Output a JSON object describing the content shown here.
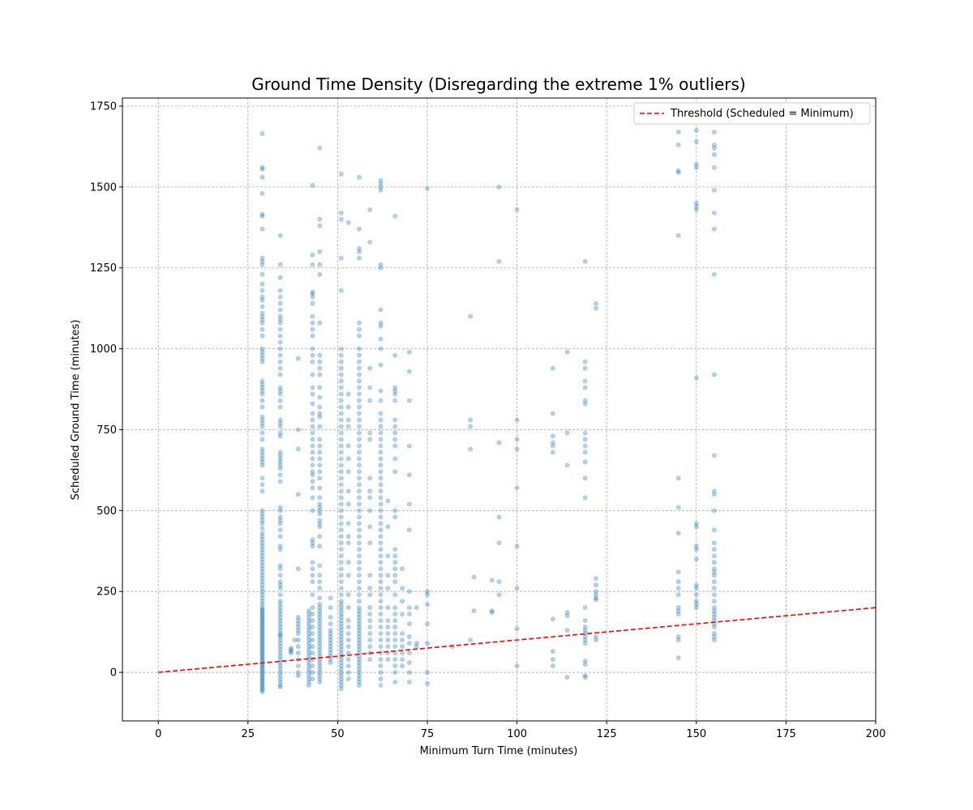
{
  "chart_data": {
    "type": "scatter",
    "title": "Ground Time Density (Disregarding the extreme 1% outliers)",
    "xlabel": "Minimum Turn Time (minutes)",
    "ylabel": "Scheduled Ground Time (minutes)",
    "xlim": [
      -10,
      200
    ],
    "ylim": [
      -150,
      1775
    ],
    "x_ticks": [
      0,
      25,
      50,
      75,
      100,
      125,
      150,
      175,
      200
    ],
    "y_ticks": [
      0,
      250,
      500,
      750,
      1000,
      1250,
      1500,
      1750
    ],
    "grid": true,
    "legend_position": "top-right",
    "point_color": "#1f77b4",
    "point_opacity": 0.35,
    "threshold": {
      "name": "Threshold (Scheduled = Minimum)",
      "color": "#ff0000",
      "style": "dashed",
      "points": [
        [
          0,
          0
        ],
        [
          200,
          200
        ]
      ]
    },
    "columns": [
      {
        "x": 29,
        "y": [
          -60,
          -55,
          -50,
          -45,
          -40,
          -35,
          -30,
          -25,
          -20,
          -15,
          -10,
          -5,
          0,
          5,
          10,
          15,
          20,
          25,
          30,
          35,
          40,
          45,
          50,
          55,
          60,
          65,
          70,
          75,
          80,
          85,
          90,
          95,
          100,
          105,
          110,
          115,
          120,
          125,
          130,
          135,
          140,
          145,
          150,
          155,
          160,
          165,
          170,
          175,
          180,
          185,
          190,
          195,
          200,
          210,
          220,
          230,
          240,
          250,
          260,
          270,
          280,
          290,
          300,
          310,
          320,
          330,
          340,
          350,
          360,
          370,
          380,
          390,
          400,
          410,
          420,
          430,
          445,
          460,
          470,
          480,
          490,
          500,
          560,
          580,
          600,
          640,
          650,
          660,
          670,
          680,
          690,
          720,
          740,
          760,
          770,
          780,
          790,
          820,
          840,
          860,
          870,
          880,
          890,
          900,
          960,
          970,
          980,
          990,
          1000,
          1040,
          1060,
          1080,
          1090,
          1100,
          1110,
          1130,
          1150,
          1160,
          1180,
          1200,
          1230,
          1260,
          1270,
          1280,
          1370,
          1410,
          1415,
          1480,
          1530,
          1555,
          1560,
          1665
        ]
      },
      {
        "x": 34,
        "y": [
          -45,
          -40,
          -30,
          -20,
          -10,
          0,
          10,
          20,
          30,
          40,
          50,
          60,
          70,
          80,
          90,
          100,
          110,
          115,
          120,
          130,
          140,
          150,
          160,
          170,
          180,
          190,
          200,
          210,
          220,
          240,
          260,
          270,
          280,
          300,
          320,
          330,
          380,
          390,
          420,
          440,
          460,
          470,
          480,
          500,
          510,
          590,
          610,
          630,
          640,
          650,
          660,
          670,
          680,
          730,
          740,
          760,
          770,
          780,
          820,
          840,
          860,
          870,
          880,
          920,
          940,
          960,
          980,
          1000,
          1020,
          1040,
          1060,
          1080,
          1090,
          1100,
          1120,
          1140,
          1160,
          1180,
          1220,
          1260,
          1350
        ]
      },
      {
        "x": 37,
        "y": [
          60,
          65,
          70,
          75
        ]
      },
      {
        "x": 38,
        "y": [
          100
        ]
      },
      {
        "x": 39,
        "y": [
          -10,
          0,
          20,
          40,
          60,
          80,
          100,
          120,
          130,
          140,
          150,
          160,
          170,
          320,
          550,
          690,
          750,
          970
        ]
      },
      {
        "x": 42,
        "y": [
          -40,
          -30,
          -20,
          -10,
          0,
          10,
          20,
          30,
          40,
          50,
          60,
          70,
          80,
          90,
          100,
          110,
          120,
          130,
          140,
          150,
          160,
          170,
          180,
          190
        ]
      },
      {
        "x": 43,
        "y": [
          -20,
          0,
          20,
          40,
          60,
          80,
          100,
          120,
          140,
          160,
          180,
          200,
          240,
          280,
          300,
          320,
          340,
          390,
          400,
          410,
          500,
          540,
          570,
          590,
          610,
          620,
          640,
          660,
          680,
          700,
          720,
          740,
          760,
          780,
          800,
          830,
          860,
          880,
          920,
          960,
          980,
          1000,
          1040,
          1060,
          1080,
          1100,
          1140,
          1160,
          1170,
          1175,
          1260,
          1290,
          1505
        ]
      },
      {
        "x": 45,
        "y": [
          -30,
          -20,
          -10,
          0,
          10,
          20,
          30,
          40,
          50,
          60,
          70,
          80,
          90,
          100,
          110,
          120,
          130,
          140,
          150,
          160,
          170,
          180,
          190,
          200,
          210,
          230,
          260,
          280,
          300,
          330,
          390,
          420,
          450,
          460,
          470,
          490,
          500,
          510,
          520,
          540,
          570,
          600,
          620,
          640,
          660,
          680,
          700,
          720,
          760,
          790,
          800,
          820,
          850,
          880,
          920,
          940,
          960,
          980,
          1080,
          1230,
          1260,
          1300,
          1380,
          1400,
          1620
        ]
      },
      {
        "x": 48,
        "y": [
          30,
          40,
          50,
          60,
          70,
          80,
          90,
          100,
          110,
          120,
          130,
          150,
          170,
          200,
          230
        ]
      },
      {
        "x": 51,
        "y": [
          -50,
          -40,
          -30,
          -20,
          -10,
          0,
          10,
          20,
          30,
          40,
          50,
          60,
          70,
          80,
          90,
          100,
          110,
          120,
          130,
          140,
          150,
          160,
          170,
          180,
          190,
          200,
          210,
          220,
          240,
          260,
          280,
          300,
          320,
          340,
          360,
          380,
          400,
          420,
          440,
          460,
          480,
          500,
          520,
          540,
          560,
          580,
          600,
          620,
          640,
          660,
          680,
          700,
          720,
          740,
          760,
          780,
          800,
          820,
          840,
          860,
          880,
          900,
          920,
          940,
          960,
          980,
          1000,
          1180,
          1280,
          1400,
          1420,
          1540
        ]
      },
      {
        "x": 53,
        "y": [
          -20,
          0,
          20,
          40,
          60,
          80,
          100,
          120,
          140,
          160,
          200,
          240,
          300,
          340,
          400,
          420,
          460,
          520,
          560,
          620,
          660,
          700,
          760,
          780,
          820,
          860,
          1390
        ]
      },
      {
        "x": 56,
        "y": [
          -40,
          -30,
          -20,
          -10,
          0,
          10,
          20,
          30,
          40,
          50,
          60,
          70,
          80,
          90,
          100,
          110,
          120,
          130,
          140,
          150,
          160,
          170,
          180,
          190,
          200,
          220,
          240,
          260,
          280,
          300,
          320,
          340,
          360,
          380,
          400,
          420,
          440,
          460,
          480,
          500,
          520,
          540,
          560,
          580,
          600,
          620,
          640,
          660,
          680,
          700,
          720,
          740,
          760,
          780,
          800,
          820,
          840,
          860,
          880,
          900,
          920,
          940,
          960,
          980,
          1000,
          1040,
          1060,
          1080,
          1280,
          1300,
          1310,
          1370,
          1530
        ]
      },
      {
        "x": 59,
        "y": [
          40,
          60,
          80,
          100,
          120,
          140,
          160,
          180,
          200,
          240,
          260,
          300,
          400,
          450,
          500,
          540,
          560,
          600,
          720,
          740,
          840,
          880,
          940,
          1330,
          1430
        ]
      },
      {
        "x": 62,
        "y": [
          -40,
          -20,
          0,
          20,
          40,
          60,
          80,
          100,
          120,
          140,
          160,
          180,
          200,
          220,
          240,
          260,
          280,
          300,
          320,
          340,
          360,
          380,
          400,
          420,
          440,
          460,
          480,
          500,
          520,
          540,
          560,
          580,
          600,
          620,
          640,
          660,
          680,
          700,
          720,
          740,
          760,
          780,
          800,
          840,
          870,
          950,
          1000,
          1030,
          1070,
          1080,
          1120,
          1250,
          1260,
          1490,
          1500,
          1510,
          1520
        ]
      },
      {
        "x": 64,
        "y": [
          40,
          60,
          80,
          100,
          120,
          140,
          160,
          200,
          260,
          300,
          360,
          450,
          530
        ]
      },
      {
        "x": 66,
        "y": [
          -30,
          0,
          20,
          40,
          60,
          80,
          100,
          120,
          140,
          160,
          180,
          200,
          240,
          280,
          300,
          320,
          340,
          360,
          380,
          480,
          500,
          620,
          660,
          700,
          720,
          740,
          760,
          780,
          840,
          860,
          870,
          880,
          980,
          1410
        ]
      },
      {
        "x": 68,
        "y": [
          20,
          40,
          60,
          80,
          100,
          120,
          180,
          220,
          260,
          320
        ]
      },
      {
        "x": 70,
        "y": [
          -30,
          0,
          30,
          60,
          90,
          110,
          150,
          180,
          200,
          250,
          440,
          520,
          610,
          700,
          840,
          930,
          990
        ]
      },
      {
        "x": 72,
        "y": [
          80,
          90,
          200
        ]
      },
      {
        "x": 75,
        "y": [
          -35,
          0,
          90,
          150,
          210,
          240,
          250,
          1495
        ]
      },
      {
        "x": 82,
        "y": [
          80
        ]
      },
      {
        "x": 87,
        "y": [
          100,
          690,
          760,
          780,
          1100
        ]
      },
      {
        "x": 88,
        "y": [
          190,
          295
        ]
      },
      {
        "x": 93,
        "y": [
          185,
          190,
          285
        ]
      },
      {
        "x": 95,
        "y": [
          240,
          280,
          400,
          480,
          710,
          1270,
          1500
        ]
      },
      {
        "x": 100,
        "y": [
          20,
          135,
          260,
          390,
          570,
          690,
          720,
          780,
          1430
        ]
      },
      {
        "x": 110,
        "y": [
          20,
          40,
          65,
          165,
          680,
          700,
          710,
          730,
          800,
          940
        ]
      },
      {
        "x": 114,
        "y": [
          -15,
          130,
          175,
          185,
          640,
          740,
          990
        ]
      },
      {
        "x": 119,
        "y": [
          -15,
          -10,
          25,
          35,
          90,
          100,
          110,
          120,
          130,
          140,
          160,
          200,
          540,
          600,
          650,
          680,
          700,
          720,
          740,
          830,
          840,
          880,
          900,
          940,
          960,
          1270
        ]
      },
      {
        "x": 122,
        "y": [
          100,
          110,
          225,
          230,
          240,
          250,
          270,
          290,
          1125,
          1140
        ]
      },
      {
        "x": 145,
        "y": [
          45,
          100,
          110,
          180,
          190,
          200,
          240,
          260,
          280,
          310,
          430,
          510,
          600,
          1350,
          1545,
          1550,
          1630,
          1670
        ]
      },
      {
        "x": 150,
        "y": [
          200,
          210,
          220,
          240,
          260,
          270,
          350,
          380,
          390,
          450,
          460,
          910,
          1430,
          1440,
          1450,
          1560,
          1570,
          1640,
          1675
        ]
      },
      {
        "x": 155,
        "y": [
          100,
          110,
          120,
          140,
          150,
          160,
          170,
          180,
          190,
          200,
          220,
          240,
          260,
          280,
          300,
          310,
          320,
          340,
          360,
          380,
          400,
          440,
          500,
          550,
          560,
          670,
          920,
          1230,
          1370,
          1420,
          1490,
          1560,
          1600,
          1620,
          1630,
          1670
        ]
      }
    ]
  }
}
